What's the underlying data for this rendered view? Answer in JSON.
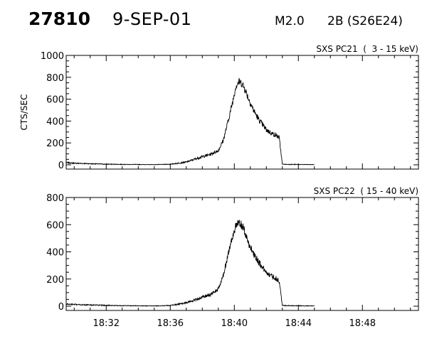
{
  "header": {
    "event_id": "27810",
    "date": "9-SEP-01",
    "flare_class": "M2.0",
    "location": "2B (S26E24)"
  },
  "chart_data": [
    {
      "type": "line",
      "title": "SXS PC21  (  3 - 15 keV)",
      "ylabel": "CTS/SEC",
      "xlim": [
        "18:29.5",
        "18:51.5"
      ],
      "ylim": [
        0,
        1000
      ],
      "yticks": [
        0,
        200,
        400,
        600,
        800,
        1000
      ],
      "xticks": [
        "18:32",
        "18:36",
        "18:40",
        "18:44",
        "18:48"
      ],
      "grid": false,
      "series": [
        {
          "x": [
            "18:29.5",
            "18:30",
            "18:31",
            "18:32",
            "18:33",
            "18:34",
            "18:35",
            "18:36",
            "18:37",
            "18:37.5",
            "18:38",
            "18:38.5",
            "18:39",
            "18:39.3",
            "18:39.6",
            "18:39.9",
            "18:40.1",
            "18:40.3",
            "18:40.5",
            "18:40.7",
            "18:40.9",
            "18:41.2",
            "18:41.5",
            "18:41.8",
            "18:42",
            "18:42.3",
            "18:42.6",
            "18:42.8",
            "18:43",
            "18:43.5",
            "18:44",
            "18:45"
          ],
          "y": [
            20,
            15,
            10,
            6,
            4,
            3,
            2,
            5,
            25,
            50,
            75,
            95,
            130,
            220,
            390,
            580,
            720,
            760,
            740,
            680,
            600,
            500,
            420,
            360,
            320,
            290,
            270,
            250,
            5,
            4,
            3,
            2
          ]
        }
      ]
    },
    {
      "type": "line",
      "title": "SXS PC22  ( 15 - 40 keV)",
      "ylabel": "",
      "xlim": [
        "18:29.5",
        "18:51.5"
      ],
      "ylim": [
        0,
        800
      ],
      "yticks": [
        0,
        200,
        400,
        600,
        800
      ],
      "xticks": [
        "18:32",
        "18:36",
        "18:40",
        "18:44",
        "18:48"
      ],
      "grid": false,
      "series": [
        {
          "x": [
            "18:29.5",
            "18:30",
            "18:31",
            "18:32",
            "18:33",
            "18:34",
            "18:35",
            "18:36",
            "18:37",
            "18:37.5",
            "18:38",
            "18:38.5",
            "18:39",
            "18:39.3",
            "18:39.6",
            "18:39.9",
            "18:40.1",
            "18:40.3",
            "18:40.5",
            "18:40.7",
            "18:40.9",
            "18:41.2",
            "18:41.5",
            "18:41.8",
            "18:42",
            "18:42.3",
            "18:42.6",
            "18:42.8",
            "18:43",
            "18:43.5",
            "18:44",
            "18:45"
          ],
          "y": [
            15,
            12,
            9,
            6,
            4,
            3,
            2,
            5,
            25,
            45,
            65,
            85,
            125,
            220,
            380,
            520,
            590,
            610,
            590,
            530,
            460,
            390,
            330,
            280,
            250,
            225,
            205,
            185,
            5,
            4,
            3,
            2
          ]
        }
      ]
    }
  ]
}
